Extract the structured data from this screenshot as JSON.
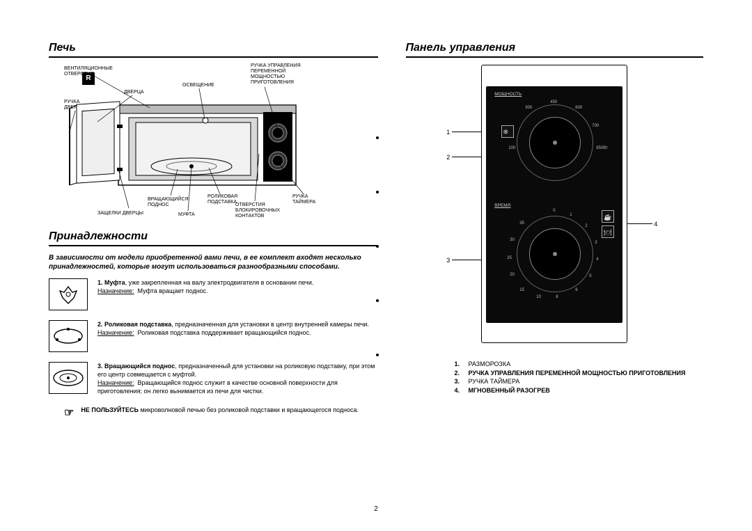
{
  "pageNumber": "2",
  "sidebarMarker": "R",
  "left": {
    "ovenTitle": "Печь",
    "accessoriesTitle": "Принадлежности",
    "ovenLabels": {
      "vent": "ВЕНТИЛЯЦИОННЫЕ\nОТВЕРСТИЯ",
      "door": "ДВЕРЦА",
      "light": "ОСВЕЩЕНИЕ",
      "powerDial": "РУЧКА УПРАВЛЕНИЯ\nПЕРЕМЕННОЙ\nМОЩНОСТЬЮ\nПРИГОТОВЛЕНИЯ",
      "doorHandle": "РУЧКА\nДВЕРЦЫ",
      "latches": "ЗАЩЕЛКИ ДВЕРЦЫ",
      "turntable": "ВРАЩАЮЩИЙСЯ\nПОДНОС",
      "coupler": "МУФТА",
      "rollerRing": "РОЛИКОВАЯ\nПОДСТАВКА",
      "interlock": "ОТВЕРСТИЯ\nБЛОКИРОВОЧНЫХ\nКОНТАКТОВ",
      "timer": "РУЧКА\nТАЙМЕРА"
    },
    "accessoriesIntro": "В зависимости от модели приобретенной вами печи, в ее комплект входят несколько принадлежностей, которые могут использоваться разнообразными способами.",
    "accessoryItems": [
      {
        "num": "1.",
        "lead": "Муфта",
        "body": ", уже закрепленная на валу электродвигателя в основании печи.",
        "purposeLabel": "Назначение:",
        "purposeText": "Муфта вращает поднос."
      },
      {
        "num": "2.",
        "lead": "Роликовая подставка",
        "body": ", предназначенная для установки в центр внутренней камеры печи.",
        "purposeLabel": "Назначение:",
        "purposeText": "Роликовая подставка поддерживает вращающийся поднос."
      },
      {
        "num": "3.",
        "lead": "Вращающийся поднос",
        "body": ", предназначенный для установки на роликовую подставку, при этом его центр совмещается с муфтой.",
        "purposeLabel": "Назначение:",
        "purposeText": "Вращающийся поднос служит в качестве основной поверхности для приготовления; он легко вынимается из печи для чистки."
      }
    ],
    "warningBold": "НЕ ПОЛЬЗУЙТЕСЬ",
    "warningRest": " микроволновой печью без роликовой подставки и вращающегося подноса."
  },
  "right": {
    "panelTitle": "Панель управления",
    "dialTop": {
      "heading": "МОЩНОСТЬ",
      "ticks": [
        "100",
        "300",
        "450",
        "600",
        "700",
        "850Вт"
      ]
    },
    "dialBottom": {
      "heading": "ВРЕМЯ",
      "ticks": [
        "0",
        "1",
        "2",
        "3",
        "4",
        "5",
        "6",
        "8",
        "10",
        "15",
        "20",
        "25",
        "30",
        "35"
      ]
    },
    "callouts": {
      "n1": "1",
      "n2": "2",
      "n3": "3",
      "n4": "4"
    },
    "legend": [
      {
        "n": "1.",
        "t": "РАЗМОРОЗКА",
        "bold": false
      },
      {
        "n": "2.",
        "t": "РУЧКА УПРАВЛЕНИЯ ПЕРЕМЕННОЙ МОЩНОСТЬЮ ПРИГОТОВЛЕНИЯ",
        "bold": true
      },
      {
        "n": "3.",
        "t": "РУЧКА ТАЙМЕРА",
        "bold": false
      },
      {
        "n": "4.",
        "t": "МГНОВЕННЫЙ РАЗОГРЕВ",
        "bold": true
      }
    ]
  }
}
